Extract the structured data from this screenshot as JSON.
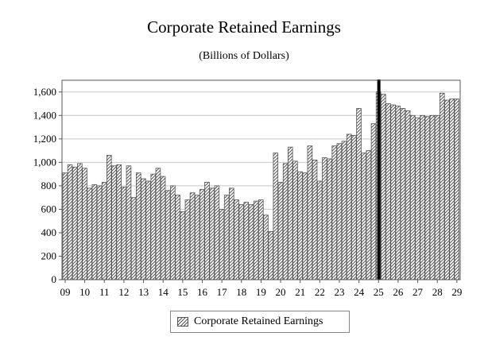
{
  "chart_data": {
    "type": "bar",
    "title": "Corporate Retained Earnings",
    "subtitle": "(Billions of Dollars)",
    "xlabel": "",
    "ylabel": "",
    "ylim": [
      0,
      1700
    ],
    "yticks": [
      "0",
      "200",
      "400",
      "600",
      "800",
      "1,000",
      "1,200",
      "1,400",
      "1,600"
    ],
    "xtick_labels": [
      "09",
      "10",
      "11",
      "12",
      "13",
      "14",
      "15",
      "16",
      "17",
      "18",
      "19",
      "20",
      "21",
      "22",
      "23",
      "24",
      "25",
      "26",
      "27",
      "28",
      "29"
    ],
    "grid": true,
    "legend_position": "bottom-center",
    "marker_line_after_index": 64,
    "series": [
      {
        "name": "Corporate Retained Earnings",
        "values": [
          910,
          980,
          960,
          990,
          950,
          780,
          810,
          800,
          830,
          1060,
          970,
          980,
          790,
          970,
          700,
          910,
          860,
          840,
          900,
          950,
          880,
          760,
          800,
          720,
          580,
          680,
          740,
          720,
          770,
          830,
          780,
          800,
          600,
          720,
          780,
          680,
          640,
          660,
          640,
          670,
          680,
          550,
          410,
          1080,
          830,
          990,
          1130,
          1010,
          920,
          910,
          1140,
          1020,
          840,
          1040,
          1030,
          1140,
          1160,
          1180,
          1240,
          1230,
          1460,
          1080,
          1100,
          1330,
          1600,
          1580,
          1500,
          1490,
          1480,
          1460,
          1440,
          1400,
          1380,
          1400,
          1390,
          1400,
          1400,
          1590,
          1530,
          1540,
          1540
        ]
      }
    ],
    "colors": {
      "bar_fill_pattern": "#555555",
      "bar_stroke": "#555555",
      "marker_line": "#000000",
      "grid": "#c8c8c8"
    }
  }
}
